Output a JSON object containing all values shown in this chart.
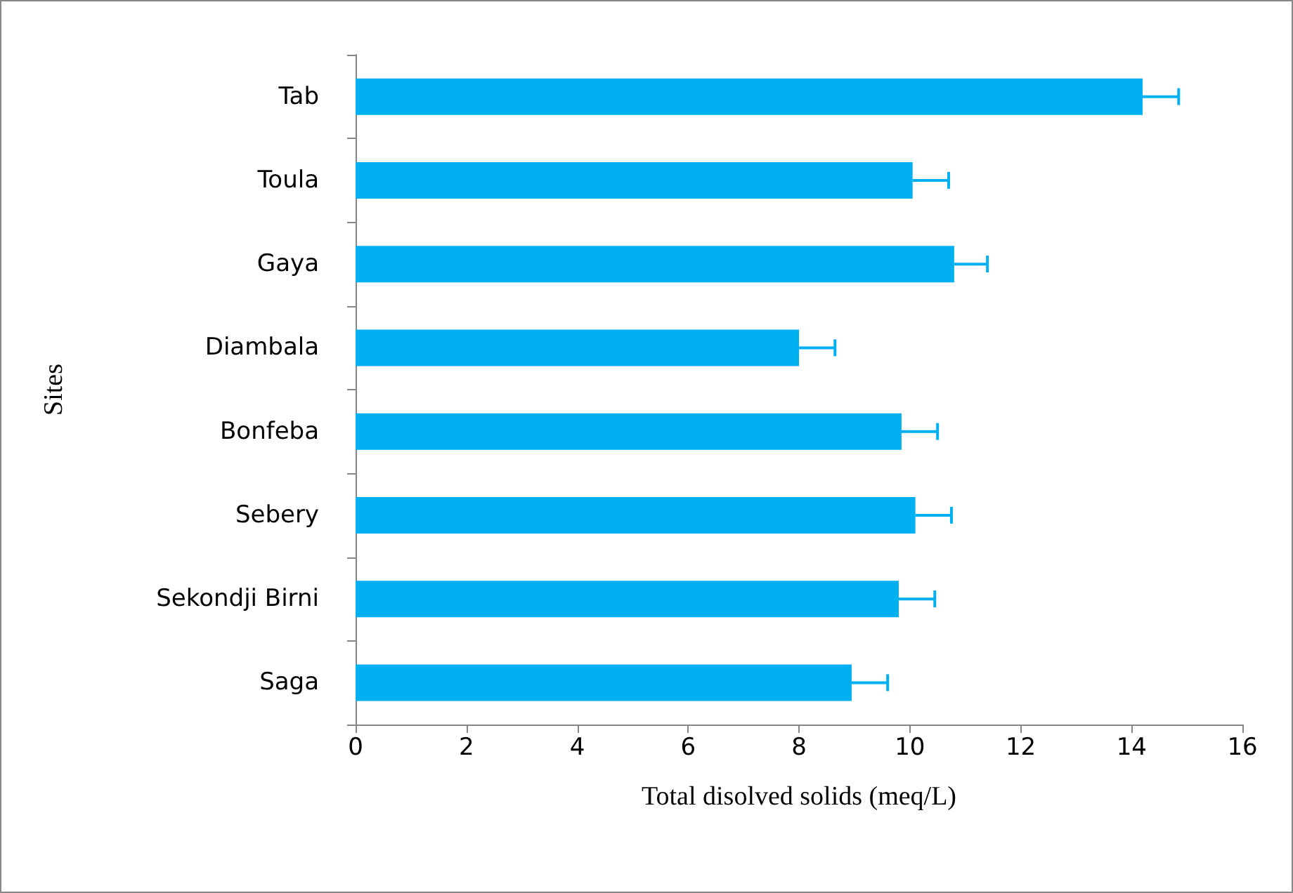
{
  "chart_data": {
    "type": "bar",
    "orientation": "horizontal",
    "xlabel": "Total disolved solids (meq/L)",
    "ylabel": "Sites",
    "categories": [
      "Tab",
      "Toula",
      "Gaya",
      "Diambala",
      "Bonfeba",
      "Sebery",
      "Sekondji Birni",
      "Saga"
    ],
    "values": [
      14.2,
      10.05,
      10.8,
      8.0,
      9.85,
      10.1,
      9.8,
      8.95
    ],
    "errors": [
      0.65,
      0.65,
      0.6,
      0.65,
      0.65,
      0.65,
      0.65,
      0.65
    ],
    "color": "#00b0f0",
    "xlim": [
      0,
      16
    ],
    "xticks": [
      0,
      2,
      4,
      6,
      8,
      10,
      12,
      14,
      16
    ],
    "grid": false
  }
}
